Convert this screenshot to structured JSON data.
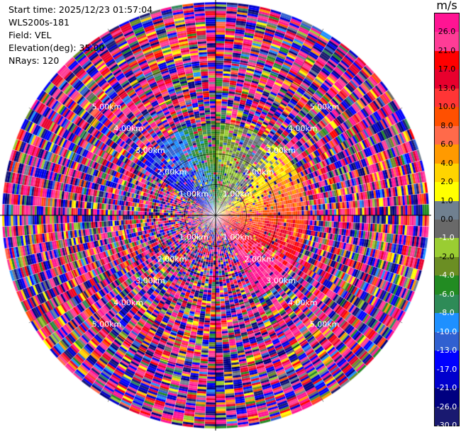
{
  "header": {
    "start_time": "Start time: 2025/12/23 01:57:04",
    "station": "WLS200s-181",
    "field": "Field: VEL",
    "elevation": "Elevation(deg): 35.00",
    "nrays": "NRays: 120"
  },
  "chart_data": {
    "type": "heatmap",
    "projection": "polar-ppi",
    "field": "VEL",
    "units": "m/s",
    "n_rays": 120,
    "elevation_deg": 35.0,
    "max_range_km": 7.0,
    "range_rings_km": [
      1,
      2,
      3,
      4,
      5
    ],
    "ring_label_texts": [
      "1.00km",
      "2.00km",
      "3.00km",
      "4.00km",
      "5.00km"
    ],
    "ring_label_bearings_deg": [
      45,
      135,
      225,
      315
    ],
    "grid": true,
    "colorbar": {
      "placement": "right",
      "unit_label": "m/s",
      "ticks": [
        26.0,
        21.0,
        17.0,
        13.0,
        10.0,
        8.0,
        6.0,
        4.0,
        2.0,
        1.0,
        0.0,
        -1.0,
        -2.0,
        -4.0,
        -6.0,
        -8.0,
        -10.0,
        -13.0,
        -17.0,
        -21.0,
        -26.0,
        -30.0
      ],
      "tick_labels": [
        "26.0",
        "21.0",
        "17.0",
        "13.0",
        "10.0",
        "8.0",
        "6.0",
        "4.0",
        "2.0",
        "1.0",
        "0.0",
        "-1.0",
        "-2.0",
        "-4.0",
        "-6.0",
        "-8.0",
        "-10.0",
        "-13.0",
        "-17.0",
        "-21.0",
        "-26.0",
        "-30.0"
      ],
      "colors_top_to_bottom": [
        "#ff1493",
        "#ff3c96",
        "#ff0000",
        "#e8002d",
        "#ff3535",
        "#ff5000",
        "#ff6a4a",
        "#ff9a00",
        "#ffd400",
        "#ffff00",
        "#708090",
        "#696969",
        "#9acd32",
        "#6b8e23",
        "#228b22",
        "#2e8b57",
        "#1e90ff",
        "#3060d0",
        "#0000ff",
        "#0000cd",
        "#000080",
        "#191970"
      ],
      "label_colors": [
        "#000000",
        "#000000",
        "#000000",
        "#000000",
        "#000000",
        "#000000",
        "#000000",
        "#000000",
        "#000000",
        "#000000",
        "#000000",
        "#ffffff",
        "#000000",
        "#ffffff",
        "#ffffff",
        "#ffffff",
        "#ffffff",
        "#ffffff",
        "#ffffff",
        "#ffffff",
        "#ffffff",
        "#ffffff"
      ]
    }
  }
}
